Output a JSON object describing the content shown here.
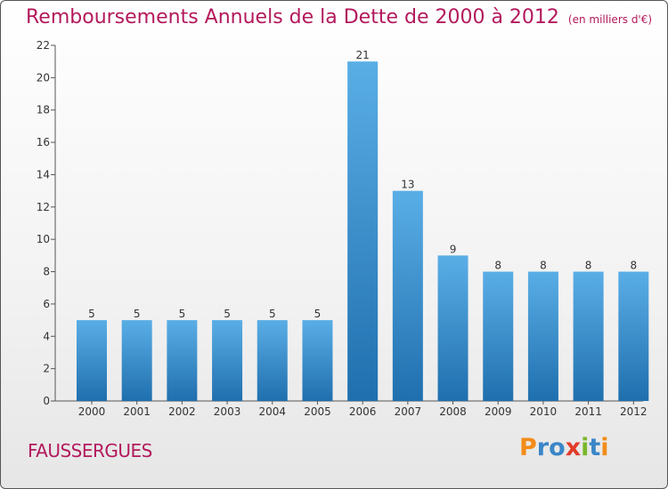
{
  "chart_data": {
    "type": "bar",
    "title": "Remboursements Annuels de la Dette de 2000 à 2012",
    "subtitle": "(en milliers d'€)",
    "categories": [
      "2000",
      "2001",
      "2002",
      "2003",
      "2004",
      "2005",
      "2006",
      "2007",
      "2008",
      "2009",
      "2010",
      "2011",
      "2012"
    ],
    "values": [
      5,
      5,
      5,
      5,
      5,
      5,
      21,
      13,
      9,
      8,
      8,
      8,
      8
    ],
    "ylim": [
      0,
      22
    ],
    "yticks": [
      0,
      2,
      4,
      6,
      8,
      10,
      12,
      14,
      16,
      18,
      20,
      22
    ],
    "xlabel": "",
    "ylabel": "",
    "grid": false,
    "colors": {
      "bar_light": "#5aaee6",
      "bar_dark": "#1f6fae",
      "title": "#b3195c",
      "axis": "#555555",
      "text": "#333333"
    }
  },
  "footer": {
    "commune": "FAUSSERGUES",
    "logo_letters": [
      "P",
      "r",
      "o",
      "x",
      "i",
      "t",
      "i"
    ],
    "logo_colors": [
      "#f28c1a",
      "#3a86c8",
      "#3a86c8",
      "#e23c2b",
      "#79b829",
      "#3a86c8",
      "#f28c1a"
    ]
  }
}
